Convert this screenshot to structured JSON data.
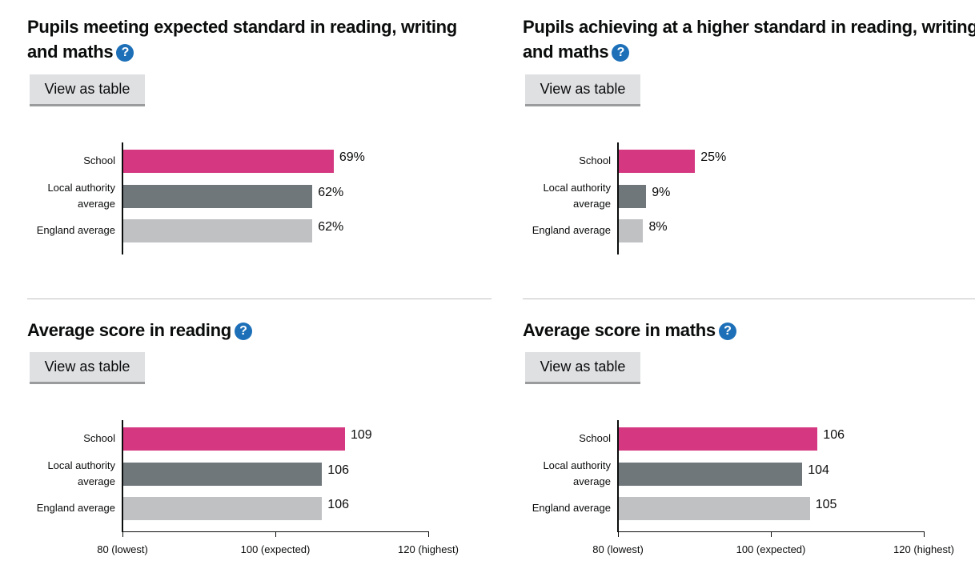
{
  "button_label": "View as table",
  "help_icon": "?",
  "colors": {
    "school": "#d53880",
    "la": "#6f777b",
    "england": "#bfc1c3",
    "help": "#1d70b8"
  },
  "chart_data": [
    {
      "type": "bar",
      "title": "Pupils meeting expected standard in reading, writing and maths",
      "categories": [
        "School",
        "Local authority average",
        "England average"
      ],
      "values": [
        69,
        62,
        62
      ],
      "labels": [
        "69%",
        "62%",
        "62%"
      ],
      "xlim": [
        0,
        100
      ],
      "ticks": []
    },
    {
      "type": "bar",
      "title": "Pupils achieving at a higher standard in reading, writing and maths",
      "categories": [
        "School",
        "Local authority average",
        "England average"
      ],
      "values": [
        25,
        9,
        8
      ],
      "labels": [
        "25%",
        "9%",
        "8%"
      ],
      "xlim": [
        0,
        100
      ],
      "ticks": []
    },
    {
      "type": "bar",
      "title": "Average score in reading",
      "categories": [
        "School",
        "Local authority average",
        "England average"
      ],
      "values": [
        109,
        106,
        106
      ],
      "labels": [
        "109",
        "106",
        "106"
      ],
      "xlim": [
        80,
        120
      ],
      "ticks": [
        {
          "v": 80,
          "label": "80 (lowest)"
        },
        {
          "v": 100,
          "label": "100 (expected)"
        },
        {
          "v": 120,
          "label": "120 (highest)"
        }
      ]
    },
    {
      "type": "bar",
      "title": "Average score in maths",
      "categories": [
        "School",
        "Local authority average",
        "England average"
      ],
      "values": [
        106,
        104,
        105
      ],
      "labels": [
        "106",
        "104",
        "105"
      ],
      "xlim": [
        80,
        120
      ],
      "ticks": [
        {
          "v": 80,
          "label": "80 (lowest)"
        },
        {
          "v": 100,
          "label": "100 (expected)"
        },
        {
          "v": 120,
          "label": "120 (highest)"
        }
      ]
    }
  ]
}
